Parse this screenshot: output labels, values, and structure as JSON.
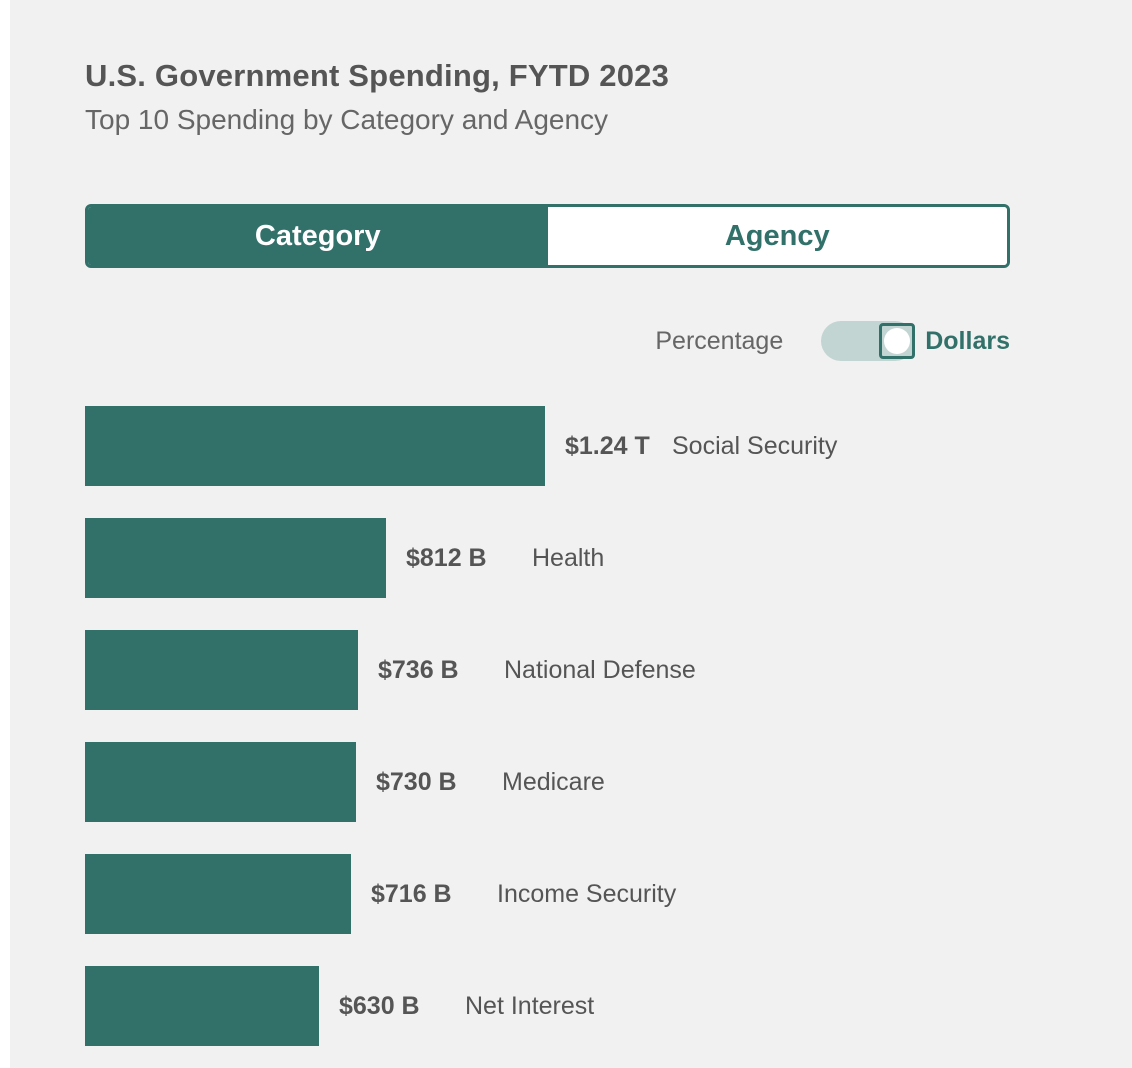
{
  "header": {
    "title": "U.S. Government Spending, FYTD 2023",
    "subtitle": "Top 10 Spending by Category and Agency"
  },
  "tabs": [
    {
      "label": "Category",
      "active": true
    },
    {
      "label": "Agency",
      "active": false
    }
  ],
  "toggle": {
    "left_label": "Percentage",
    "right_label": "Dollars",
    "selected": "Dollars"
  },
  "colors": {
    "accent": "#32716a",
    "toggle_track": "#c2d5d2",
    "panel_background": "#f1f1f1",
    "text": "#555555"
  },
  "chart_data": {
    "type": "bar",
    "orientation": "horizontal",
    "unit": "billion USD",
    "categories": [
      "Social Security",
      "Health",
      "National Defense",
      "Medicare",
      "Income Security",
      "Net Interest"
    ],
    "values": [
      1240,
      812,
      736,
      730,
      716,
      630
    ],
    "value_labels": [
      "$1.24 T",
      "$812 B",
      "$736 B",
      "$730 B",
      "$716 B",
      "$630 B"
    ],
    "title": "",
    "xlabel": "",
    "ylabel": "",
    "grid": false
  }
}
